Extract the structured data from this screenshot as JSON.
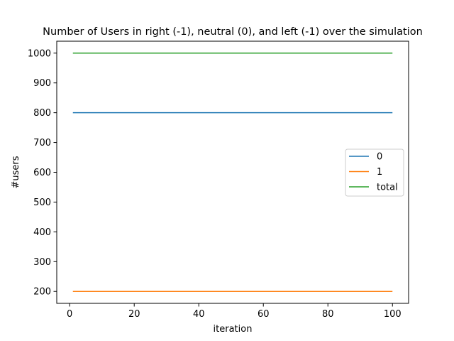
{
  "chart_data": {
    "type": "line",
    "title": "Number of Users in right (-1), neutral (0), and left (-1) over the simulation",
    "xlabel": "iteration",
    "ylabel": "#users",
    "xlim": [
      -4,
      105
    ],
    "ylim": [
      160,
      1040
    ],
    "xticks": [
      0,
      20,
      40,
      60,
      80,
      100
    ],
    "yticks": [
      200,
      300,
      400,
      500,
      600,
      700,
      800,
      900,
      1000
    ],
    "grid": false,
    "legend_position": "center-right",
    "x": {
      "start": 1,
      "end": 100
    },
    "series": [
      {
        "name": "0",
        "color": "#1f77b4",
        "value": 800
      },
      {
        "name": "1",
        "color": "#ff7f0e",
        "value": 200
      },
      {
        "name": "total",
        "color": "#2ca02c",
        "value": 1000
      }
    ]
  }
}
